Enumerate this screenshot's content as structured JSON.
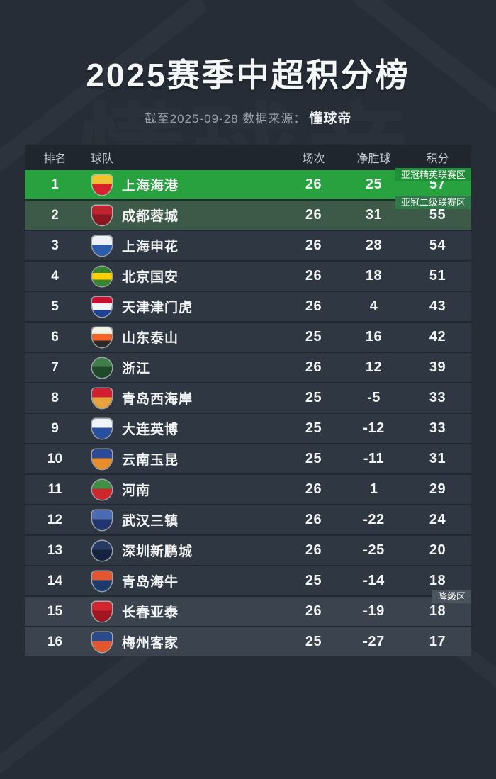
{
  "page": {
    "title": "2025赛季中超积分榜",
    "subtitle_prefix": "截至2025-09-28 数据来源：",
    "source": "懂球帝",
    "watermark": "懂球帝"
  },
  "colors": {
    "background": "#262d36",
    "header_bg": "#1f262d",
    "row_bg": "#2f3842",
    "acl_elite_row": "#28a23f",
    "acl_elite_badge": "#1f8f37",
    "acl_two_row": "#3d5947",
    "acl_two_badge": "#2e7a48",
    "relegation_row": "#3a434e",
    "relegation_badge": "#49545f",
    "text": "#f2f4f5",
    "muted_text": "#99a1aa"
  },
  "table": {
    "headers": {
      "rank": "排名",
      "team": "球队",
      "played": "场次",
      "gd": "净胜球",
      "points": "积分"
    },
    "rows": [
      {
        "rank": "1",
        "team": "上海海港",
        "played": "26",
        "gd": "25",
        "points": "57",
        "zone_badge": "亚冠精英联赛区",
        "row_type": "acl-elite",
        "logo": {
          "shape": "shield",
          "colors": [
            "#f2c230",
            "#d8232f"
          ]
        }
      },
      {
        "rank": "2",
        "team": "成都蓉城",
        "played": "26",
        "gd": "31",
        "points": "55",
        "zone_badge": "亚冠二级联赛区",
        "row_type": "acl-two",
        "logo": {
          "shape": "shield",
          "colors": [
            "#c0242e",
            "#8a1722"
          ]
        }
      },
      {
        "rank": "3",
        "team": "上海申花",
        "played": "26",
        "gd": "28",
        "points": "54",
        "logo": {
          "shape": "shield",
          "colors": [
            "#eef2f7",
            "#2b5cad"
          ]
        }
      },
      {
        "rank": "4",
        "team": "北京国安",
        "played": "26",
        "gd": "18",
        "points": "51",
        "logo": {
          "shape": "circle",
          "colors": [
            "#36852f",
            "#ffd000",
            "#36852f"
          ]
        }
      },
      {
        "rank": "5",
        "team": "天津津门虎",
        "played": "26",
        "gd": "4",
        "points": "43",
        "logo": {
          "shape": "shield",
          "colors": [
            "#c8102e",
            "#f0f2f5",
            "#1e4296"
          ]
        }
      },
      {
        "rank": "6",
        "team": "山东泰山",
        "played": "25",
        "gd": "16",
        "points": "42",
        "logo": {
          "shape": "shield",
          "colors": [
            "#f5f0e6",
            "#f26522",
            "#2a2a2a"
          ]
        }
      },
      {
        "rank": "7",
        "team": "浙江",
        "played": "26",
        "gd": "12",
        "points": "39",
        "logo": {
          "shape": "circle",
          "colors": [
            "#3f7d49",
            "#1e4a2a"
          ]
        }
      },
      {
        "rank": "8",
        "team": "青岛西海岸",
        "played": "25",
        "gd": "-5",
        "points": "33",
        "logo": {
          "shape": "shield",
          "colors": [
            "#d01f2f",
            "#e8a33c"
          ]
        }
      },
      {
        "rank": "9",
        "team": "大连英博",
        "played": "25",
        "gd": "-12",
        "points": "33",
        "logo": {
          "shape": "shield",
          "colors": [
            "#f0f3f7",
            "#2b4fa0"
          ]
        }
      },
      {
        "rank": "10",
        "team": "云南玉昆",
        "played": "25",
        "gd": "-11",
        "points": "31",
        "logo": {
          "shape": "shield",
          "colors": [
            "#2b4a9b",
            "#e98c2a"
          ]
        }
      },
      {
        "rank": "11",
        "team": "河南",
        "played": "26",
        "gd": "1",
        "points": "29",
        "logo": {
          "shape": "circle",
          "colors": [
            "#3f8f45",
            "#d0262e"
          ]
        }
      },
      {
        "rank": "12",
        "team": "武汉三镇",
        "played": "26",
        "gd": "-22",
        "points": "24",
        "logo": {
          "shape": "shield",
          "colors": [
            "#4a6cb5",
            "#22356e"
          ]
        }
      },
      {
        "rank": "13",
        "team": "深圳新鹏城",
        "played": "26",
        "gd": "-25",
        "points": "20",
        "logo": {
          "shape": "circle",
          "colors": [
            "#253b66",
            "#16233f"
          ]
        }
      },
      {
        "rank": "14",
        "team": "青岛海牛",
        "played": "25",
        "gd": "-14",
        "points": "18",
        "logo": {
          "shape": "shield",
          "colors": [
            "#e4572e",
            "#1d3a6e"
          ]
        }
      },
      {
        "rank": "15",
        "team": "长春亚泰",
        "played": "26",
        "gd": "-19",
        "points": "18",
        "zone_badge": "降级区",
        "row_type": "relegation",
        "logo": {
          "shape": "shield",
          "colors": [
            "#d0262e",
            "#a01622"
          ]
        }
      },
      {
        "rank": "16",
        "team": "梅州客家",
        "played": "25",
        "gd": "-27",
        "points": "17",
        "row_type": "relegation",
        "logo": {
          "shape": "shield",
          "colors": [
            "#2b4a8c",
            "#e4572e"
          ]
        }
      }
    ]
  },
  "chart_data": {
    "type": "table",
    "title": "2025赛季中超积分榜",
    "as_of": "2025-09-28",
    "source": "懂球帝",
    "columns": [
      "排名",
      "球队",
      "场次",
      "净胜球",
      "积分"
    ],
    "rows": [
      [
        1,
        "上海海港",
        26,
        25,
        57
      ],
      [
        2,
        "成都蓉城",
        26,
        31,
        55
      ],
      [
        3,
        "上海申花",
        26,
        28,
        54
      ],
      [
        4,
        "北京国安",
        26,
        18,
        51
      ],
      [
        5,
        "天津津门虎",
        26,
        4,
        43
      ],
      [
        6,
        "山东泰山",
        25,
        16,
        42
      ],
      [
        7,
        "浙江",
        26,
        12,
        39
      ],
      [
        8,
        "青岛西海岸",
        25,
        -5,
        33
      ],
      [
        9,
        "大连英博",
        25,
        -12,
        33
      ],
      [
        10,
        "云南玉昆",
        25,
        -11,
        31
      ],
      [
        11,
        "河南",
        26,
        1,
        29
      ],
      [
        12,
        "武汉三镇",
        26,
        -22,
        24
      ],
      [
        13,
        "深圳新鹏城",
        26,
        -25,
        20
      ],
      [
        14,
        "青岛海牛",
        25,
        -14,
        18
      ],
      [
        15,
        "长春亚泰",
        26,
        -19,
        18
      ],
      [
        16,
        "梅州客家",
        25,
        -27,
        17
      ]
    ],
    "zones": {
      "亚冠精英联赛区": [
        1
      ],
      "亚冠二级联赛区": [
        2
      ],
      "降级区": [
        15,
        16
      ]
    }
  }
}
